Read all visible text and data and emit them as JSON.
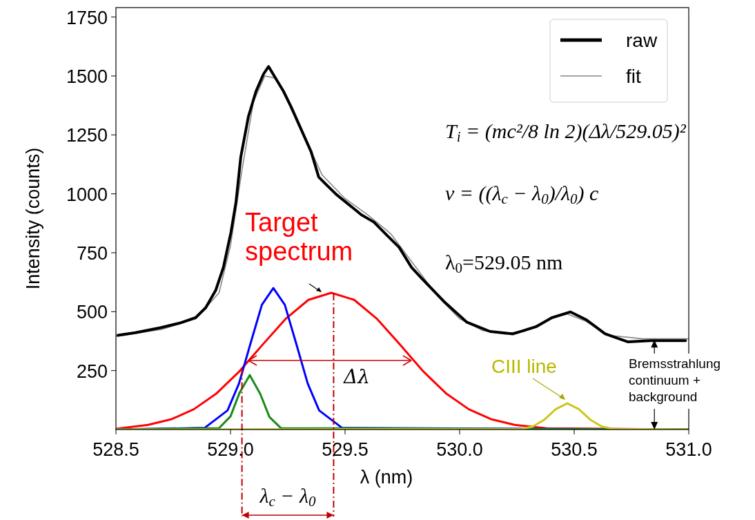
{
  "chart_data": {
    "type": "line",
    "xlabel": "λ (nm)",
    "ylabel": "Intensity (counts)",
    "xlim": [
      528.5,
      531.0
    ],
    "xticks": [
      528.5,
      {
        "value": 529,
        "label": "529.0"
      },
      529.5,
      {
        "value": 530,
        "label": "530.0"
      },
      530.5,
      {
        "value": 531,
        "label": "531.0"
      }
    ],
    "ylim": [
      0,
      1790
    ],
    "yticks": [
      250,
      500,
      750,
      1000,
      1250,
      1500,
      1750
    ],
    "grid": false,
    "legend": "top right",
    "marker": "none",
    "line_style": "solid",
    "series": [
      {
        "name": "raw",
        "color": "#000000",
        "x": [
          528.509,
          528.585,
          528.695,
          528.783,
          528.848,
          528.892,
          528.936,
          528.969,
          529.002,
          529.024,
          529.045,
          529.078,
          529.111,
          529.144,
          529.166,
          529.199,
          529.232,
          529.264,
          529.308,
          529.352,
          529.385,
          529.418,
          529.462,
          529.517,
          529.571,
          529.626,
          529.681,
          529.736,
          529.79,
          529.831,
          529.932,
          530.032,
          530.133,
          530.233,
          530.333,
          530.404,
          530.484,
          530.554,
          530.635,
          530.735,
          530.835,
          530.986
        ],
        "values": [
          400,
          411,
          432,
          453,
          475,
          517,
          592,
          688,
          837,
          965,
          1157,
          1327,
          1434,
          1508,
          1540,
          1487,
          1434,
          1370,
          1274,
          1178,
          1071,
          1039,
          997,
          954,
          911,
          880,
          826,
          773,
          688,
          645,
          543,
          455,
          416,
          406,
          436,
          475,
          499,
          465,
          406,
          372,
          377,
          377
        ]
      },
      {
        "name": "fit",
        "color": "#888888",
        "x": [
          528.5,
          528.7,
          528.85,
          528.95,
          529.0,
          529.05,
          529.1,
          529.15,
          529.2,
          529.3,
          529.4,
          529.5,
          529.6,
          529.7,
          529.8,
          529.9,
          530.0,
          530.1,
          530.2,
          530.3,
          530.4,
          530.47,
          530.55,
          530.65,
          530.8,
          531.0
        ],
        "values": [
          395,
          425,
          470,
          580,
          780,
          1100,
          1390,
          1500,
          1490,
          1290,
          1080,
          980,
          910,
          830,
          700,
          570,
          470,
          420,
          405,
          425,
          470,
          490,
          460,
          400,
          385,
          385
        ]
      },
      {
        "color": "#ff0000",
        "x": [
          528.5,
          528.64,
          528.74,
          528.84,
          528.94,
          529.04,
          529.14,
          529.24,
          529.34,
          529.44,
          529.54,
          529.64,
          529.74,
          529.84,
          529.94,
          530.04,
          530.14,
          530.24,
          530.38,
          531.0
        ],
        "values": [
          3,
          20,
          43,
          86,
          154,
          248,
          360,
          469,
          550,
          580,
          550,
          469,
          360,
          248,
          154,
          86,
          43,
          20,
          5,
          0
        ]
      },
      {
        "color": "#0000ff",
        "x": [
          528.5,
          528.887,
          528.987,
          529.037,
          529.087,
          529.137,
          529.187,
          529.237,
          529.287,
          529.337,
          529.387,
          529.487,
          531.0
        ],
        "values": [
          0,
          7,
          81,
          195,
          364,
          529,
          600,
          529,
          364,
          195,
          81,
          7,
          0
        ]
      },
      {
        "color": "#1a8a1a",
        "x": [
          528.5,
          528.95,
          529.0,
          529.04,
          529.084,
          529.13,
          529.17,
          529.22,
          531.0
        ],
        "values": [
          0,
          6,
          56,
          157,
          231,
          151,
          53,
          6,
          0
        ]
      },
      {
        "color": "#c8c81e",
        "x": [
          528.5,
          530.27,
          530.32,
          530.37,
          530.42,
          530.47,
          530.52,
          530.57,
          530.62,
          530.67,
          531.0
        ],
        "values": [
          0,
          2,
          13,
          42,
          87,
          111,
          87,
          42,
          13,
          2,
          0
        ]
      }
    ],
    "ref_lines": [
      {
        "axis": "x",
        "value": 529.05,
        "color": "#c00000",
        "line_style": "dashed"
      },
      {
        "axis": "x",
        "value": 529.45,
        "color": "#c00000",
        "line_style": "dashed"
      }
    ],
    "annotations": [
      {
        "text": "Target spectrum",
        "x": 529.44,
        "y": 580
      },
      "Δλ",
      {
        "text": "CIII line",
        "x": 530.47,
        "y": 111
      },
      {
        "text": "Bremsstrahlung continuum + background",
        "x": 530.85,
        "y": 380
      },
      "T$_{i}$ = (mc²/8 ln 2)(Δλ/529.05)²",
      "v = ((λ$_{c}$ − λ$_{0}$)/λ$_{0}$) c",
      "λ$_{0}$=529.05 nm",
      "λ$_{c}$ − λ$_{0}$"
    ]
  }
}
